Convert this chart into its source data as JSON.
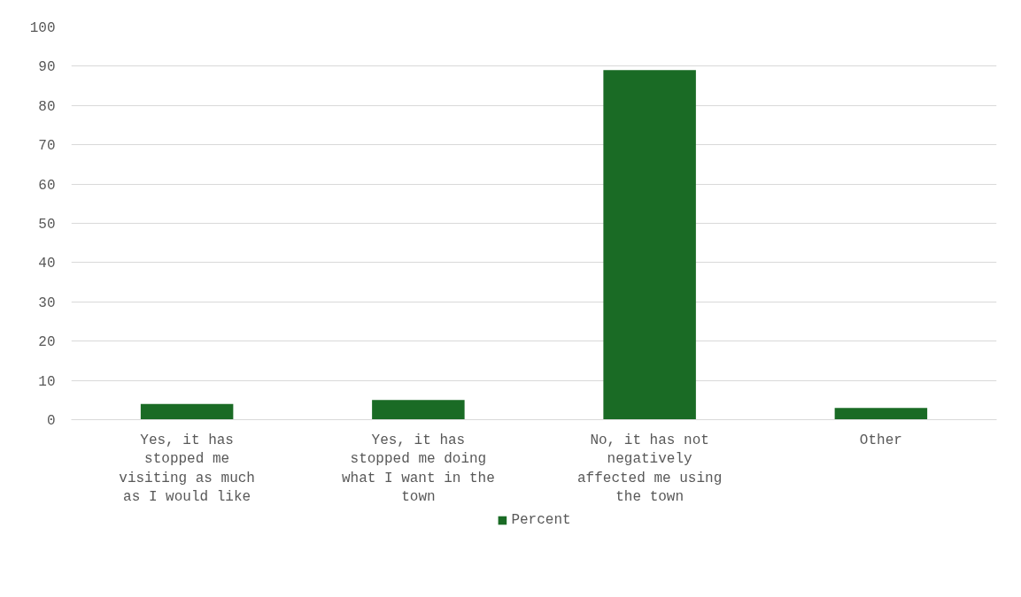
{
  "chart_data": {
    "type": "bar",
    "categories": [
      "Yes, it has stopped me visiting as much as I would like",
      "Yes, it has stopped me doing what I want in the town",
      "No, it has not negatively affected me using the town",
      "Other"
    ],
    "series": [
      {
        "name": "Percent",
        "color": "#1a6b25",
        "values": [
          4,
          5,
          89,
          3
        ]
      }
    ],
    "ylim": [
      0,
      100
    ],
    "yticks": [
      0,
      10,
      20,
      30,
      40,
      50,
      60,
      70,
      80,
      90,
      100
    ],
    "grid": "y",
    "legend": "bottom"
  }
}
